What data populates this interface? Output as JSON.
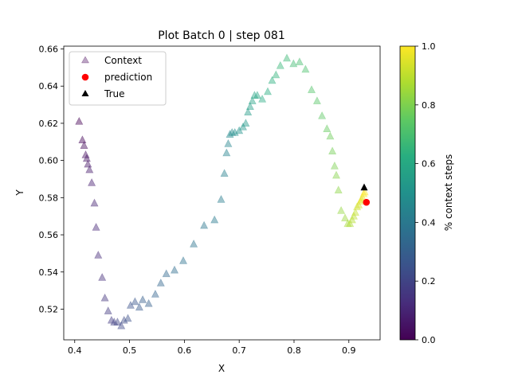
{
  "chart_data": {
    "type": "scatter",
    "title": "Plot Batch 0 | step 081",
    "xlabel": "X",
    "ylabel": "Y",
    "xlim": [
      0.38,
      0.957
    ],
    "ylim": [
      0.5035,
      0.6615
    ],
    "xticks": [
      0.4,
      0.5,
      0.6,
      0.7,
      0.8,
      0.9
    ],
    "xtick_labels": [
      "0.4",
      "0.5",
      "0.6",
      "0.7",
      "0.8",
      "0.9"
    ],
    "yticks": [
      0.52,
      0.54,
      0.56,
      0.58,
      0.6,
      0.62,
      0.64,
      0.66
    ],
    "ytick_labels": [
      "0.52",
      "0.54",
      "0.56",
      "0.58",
      "0.60",
      "0.62",
      "0.64",
      "0.66"
    ],
    "grid": false,
    "legend": {
      "position": "top-left",
      "entries": [
        "Context",
        "prediction",
        "True"
      ]
    },
    "colorbar": {
      "label": "% context steps",
      "range": [
        0.0,
        1.0
      ],
      "ticks": [
        "0.0",
        "0.2",
        "0.4",
        "0.6",
        "0.8",
        "1.0"
      ],
      "colormap": "viridis"
    },
    "colors": {
      "prediction": "#ff0000",
      "true": "#000000"
    },
    "series": [
      {
        "name": "Context",
        "marker": "triangle",
        "opacity": 0.45,
        "color_by": "% context steps",
        "x": [
          0.408,
          0.414,
          0.417,
          0.42,
          0.422,
          0.424,
          0.427,
          0.431,
          0.436,
          0.439,
          0.443,
          0.45,
          0.455,
          0.461,
          0.467,
          0.472,
          0.478,
          0.485,
          0.49,
          0.497,
          0.502,
          0.51,
          0.518,
          0.524,
          0.535,
          0.547,
          0.557,
          0.567,
          0.582,
          0.598,
          0.617,
          0.636,
          0.655,
          0.667,
          0.673,
          0.677,
          0.68,
          0.683,
          0.687,
          0.692,
          0.7,
          0.707,
          0.712,
          0.716,
          0.72,
          0.724,
          0.728,
          0.733,
          0.742,
          0.752,
          0.76,
          0.767,
          0.775,
          0.787,
          0.799,
          0.81,
          0.821,
          0.832,
          0.842,
          0.851,
          0.86,
          0.866,
          0.87,
          0.874,
          0.877,
          0.881,
          0.886,
          0.893,
          0.898,
          0.902,
          0.906,
          0.909,
          0.912,
          0.915,
          0.918,
          0.921,
          0.923,
          0.925,
          0.927,
          0.929
        ],
        "y": [
          0.621,
          0.611,
          0.608,
          0.603,
          0.601,
          0.598,
          0.595,
          0.588,
          0.577,
          0.564,
          0.549,
          0.537,
          0.526,
          0.519,
          0.514,
          0.513,
          0.513,
          0.511,
          0.514,
          0.515,
          0.522,
          0.524,
          0.521,
          0.525,
          0.523,
          0.528,
          0.534,
          0.539,
          0.541,
          0.546,
          0.555,
          0.565,
          0.568,
          0.579,
          0.593,
          0.604,
          0.609,
          0.614,
          0.615,
          0.615,
          0.616,
          0.618,
          0.62,
          0.626,
          0.629,
          0.632,
          0.635,
          0.635,
          0.633,
          0.637,
          0.643,
          0.646,
          0.651,
          0.655,
          0.652,
          0.653,
          0.649,
          0.638,
          0.632,
          0.624,
          0.617,
          0.613,
          0.605,
          0.597,
          0.592,
          0.584,
          0.573,
          0.569,
          0.566,
          0.566,
          0.568,
          0.57,
          0.572,
          0.575,
          0.576,
          0.578,
          0.579,
          0.58,
          0.582,
          0.583
        ]
      },
      {
        "name": "prediction",
        "marker": "circle",
        "x": [
          0.932
        ],
        "y": [
          0.5775
        ]
      },
      {
        "name": "True",
        "marker": "triangle",
        "x": [
          0.928
        ],
        "y": [
          0.5855
        ]
      }
    ]
  }
}
